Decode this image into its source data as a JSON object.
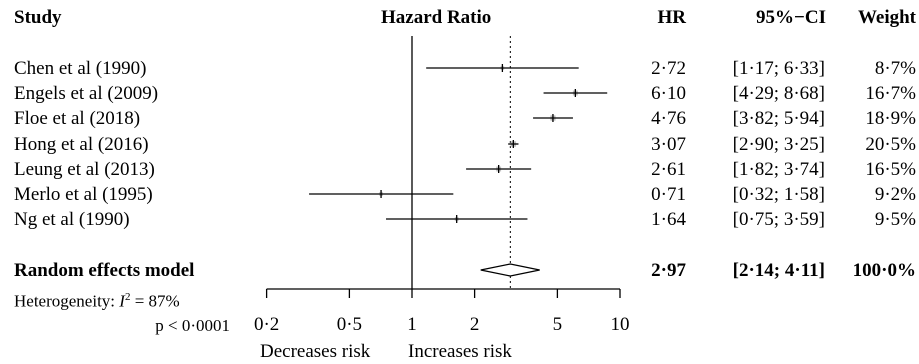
{
  "chart_data": {
    "type": "forest",
    "title": "",
    "header": {
      "study": "Study",
      "plot": "Hazard Ratio",
      "hr": "HR",
      "ci": "95%−CI",
      "weight": "Weight"
    },
    "x_scale": "log",
    "xlim": [
      0.1,
      10
    ],
    "xticks": [
      {
        "value": 0.2,
        "label": "0·2"
      },
      {
        "value": 0.5,
        "label": "0·5"
      },
      {
        "value": 1,
        "label": "1"
      },
      {
        "value": 2,
        "label": "2"
      },
      {
        "value": 5,
        "label": "5"
      },
      {
        "value": 10,
        "label": "10"
      }
    ],
    "reference_line": 1,
    "pooled_line": 2.97,
    "studies": [
      {
        "name": "Chen et al (1990)",
        "hr": 2.72,
        "lo": 1.17,
        "hi": 6.33,
        "hr_text": "2·72",
        "ci_text": "[1·17; 6·33]",
        "weight": 8.7,
        "weight_text": "8·7%"
      },
      {
        "name": "Engels et al (2009)",
        "hr": 6.1,
        "lo": 4.29,
        "hi": 8.68,
        "hr_text": "6·10",
        "ci_text": "[4·29; 8·68]",
        "weight": 16.7,
        "weight_text": "16·7%"
      },
      {
        "name": "Floe et al (2018)",
        "hr": 4.76,
        "lo": 3.82,
        "hi": 5.94,
        "hr_text": "4·76",
        "ci_text": "[3·82; 5·94]",
        "weight": 18.9,
        "weight_text": "18·9%"
      },
      {
        "name": "Hong et al (2016)",
        "hr": 3.07,
        "lo": 2.9,
        "hi": 3.25,
        "hr_text": "3·07",
        "ci_text": "[2·90; 3·25]",
        "weight": 20.5,
        "weight_text": "20·5%"
      },
      {
        "name": "Leung et al (2013)",
        "hr": 2.61,
        "lo": 1.82,
        "hi": 3.74,
        "hr_text": "2·61",
        "ci_text": "[1·82; 3·74]",
        "weight": 16.5,
        "weight_text": "16·5%"
      },
      {
        "name": "Merlo et al (1995)",
        "hr": 0.71,
        "lo": 0.32,
        "hi": 1.58,
        "hr_text": "0·71",
        "ci_text": "[0·32; 1·58]",
        "weight": 9.2,
        "weight_text": "9·2%"
      },
      {
        "name": "Ng et al (1990)",
        "hr": 1.64,
        "lo": 0.75,
        "hi": 3.59,
        "hr_text": "1·64",
        "ci_text": "[0·75; 3·59]",
        "weight": 9.5,
        "weight_text": "9·5%"
      }
    ],
    "summary": {
      "name": "Random effects model",
      "hr": 2.97,
      "lo": 2.14,
      "hi": 4.11,
      "hr_text": "2·97",
      "ci_text": "[2·14; 4·11]",
      "weight_text": "100·0%"
    },
    "heterogeneity_prefix": "Heterogeneity: ",
    "i2_symbol": "I",
    "i2_value": " = 87%",
    "p_text": "p < 0·0001",
    "direction_labels": {
      "left": "Decreases risk",
      "right": "Increases risk"
    },
    "colors": {
      "box": "#c0c0c0",
      "line": "#000000"
    }
  }
}
